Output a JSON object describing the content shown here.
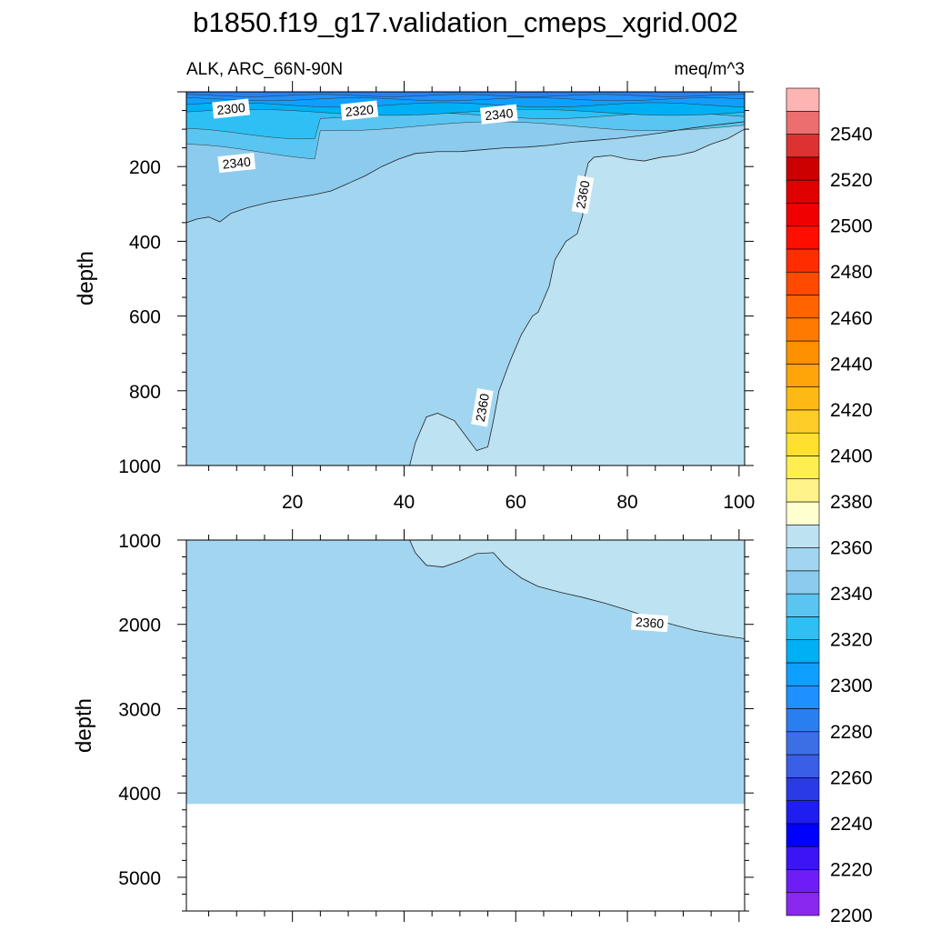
{
  "chart_data": {
    "type": "contour",
    "title": "b1850.f19_g17.validation_cmeps_xgrid.002",
    "subtitle_left": "ALK, ARC_66N-90N",
    "units": "meq/m^3",
    "ylabel": "depth",
    "xlim": [
      1,
      101
    ],
    "x_ticks": [
      "20",
      "40",
      "60",
      "80",
      "100"
    ],
    "x_tick_values": [
      20,
      40,
      60,
      80,
      100
    ],
    "top_panel": {
      "ylim": [
        0,
        1000
      ],
      "y_ticks": [
        "200",
        "400",
        "600",
        "800",
        "1000"
      ],
      "y_tick_values": [
        200,
        400,
        600,
        800,
        1000
      ],
      "contour_labels": [
        {
          "text": "2300",
          "x": 9,
          "depth": 45
        },
        {
          "text": "2320",
          "x": 32,
          "depth": 50
        },
        {
          "text": "2340",
          "x": 57,
          "depth": 60
        },
        {
          "text": "2340",
          "x": 10,
          "depth": 190
        },
        {
          "text": "2360",
          "x": 72,
          "depth": 275
        },
        {
          "text": "2360",
          "x": 54,
          "depth": 845
        }
      ],
      "contours": [
        {
          "level": 2340,
          "points": [
            [
              1,
              350
            ],
            [
              3,
              340
            ],
            [
              5,
              335
            ],
            [
              7,
              348
            ],
            [
              9,
              325
            ],
            [
              12,
              310
            ],
            [
              16,
              295
            ],
            [
              20,
              285
            ],
            [
              24,
              275
            ],
            [
              27,
              265
            ],
            [
              30,
              245
            ],
            [
              33,
              225
            ],
            [
              36,
              200
            ],
            [
              39,
              180
            ],
            [
              42,
              165
            ],
            [
              46,
              160
            ],
            [
              50,
              160
            ],
            [
              54,
              155
            ],
            [
              58,
              150
            ],
            [
              62,
              148
            ],
            [
              66,
              143
            ],
            [
              70,
              135
            ],
            [
              74,
              130
            ],
            [
              78,
              125
            ],
            [
              82,
              118
            ],
            [
              86,
              110
            ],
            [
              90,
              100
            ],
            [
              95,
              90
            ],
            [
              98,
              85
            ],
            [
              101,
              80
            ]
          ]
        },
        {
          "level": 2360,
          "points": [
            [
              41,
              1000
            ],
            [
              42,
              940
            ],
            [
              44,
              870
            ],
            [
              46,
              860
            ],
            [
              49,
              880
            ],
            [
              51,
              920
            ],
            [
              53,
              960
            ],
            [
              55,
              950
            ],
            [
              56,
              880
            ],
            [
              57,
              800
            ],
            [
              59,
              720
            ],
            [
              61,
              650
            ],
            [
              63,
              600
            ],
            [
              64,
              590
            ],
            [
              66,
              520
            ],
            [
              67,
              450
            ],
            [
              69,
              400
            ],
            [
              71,
              380
            ],
            [
              72,
              330
            ],
            [
              72,
              250
            ],
            [
              73,
              190
            ],
            [
              74,
              175
            ],
            [
              77,
              170
            ],
            [
              80,
              180
            ],
            [
              83,
              185
            ],
            [
              86,
              175
            ],
            [
              89,
              170
            ],
            [
              92,
              160
            ],
            [
              95,
              140
            ],
            [
              98,
              125
            ],
            [
              101,
              100
            ]
          ]
        }
      ]
    },
    "bottom_panel": {
      "ylim": [
        1000,
        5400
      ],
      "y_ticks": [
        "1000",
        "2000",
        "3000",
        "4000",
        "5000"
      ],
      "y_tick_values": [
        1000,
        2000,
        3000,
        4000,
        5000
      ],
      "ocean_floor_depth": 4130,
      "contour_labels": [
        {
          "text": "2360",
          "x": 84,
          "depth": 1980
        }
      ],
      "contours": [
        {
          "level": 2360,
          "points": [
            [
              41,
              1000
            ],
            [
              42,
              1150
            ],
            [
              44,
              1300
            ],
            [
              47,
              1320
            ],
            [
              50,
              1250
            ],
            [
              53,
              1160
            ],
            [
              56,
              1150
            ],
            [
              58,
              1300
            ],
            [
              61,
              1450
            ],
            [
              64,
              1550
            ],
            [
              68,
              1620
            ],
            [
              72,
              1680
            ],
            [
              76,
              1750
            ],
            [
              80,
              1830
            ],
            [
              84,
              1920
            ],
            [
              88,
              2000
            ],
            [
              92,
              2070
            ],
            [
              96,
              2120
            ],
            [
              101,
              2170
            ]
          ]
        }
      ]
    },
    "colorbar": {
      "levels": [
        2200,
        2210,
        2220,
        2230,
        2240,
        2250,
        2260,
        2270,
        2280,
        2290,
        2300,
        2310,
        2320,
        2330,
        2340,
        2350,
        2360,
        2370,
        2380,
        2390,
        2400,
        2410,
        2420,
        2430,
        2440,
        2450,
        2460,
        2470,
        2480,
        2490,
        2500,
        2510,
        2520,
        2530,
        2540,
        2550
      ],
      "labels": [
        "2200",
        "2220",
        "2240",
        "2260",
        "2280",
        "2300",
        "2320",
        "2340",
        "2360",
        "2380",
        "2400",
        "2420",
        "2440",
        "2460",
        "2480",
        "2500",
        "2520",
        "2540"
      ],
      "colors": [
        "#8a28f0",
        "#6e1ef5",
        "#3c14f5",
        "#0000ff",
        "#1e1ef0",
        "#2a3ae6",
        "#3a5ee6",
        "#3c6ee6",
        "#2a7ff0",
        "#1e90ff",
        "#0fa0ff",
        "#00b0f5",
        "#2ec0f5",
        "#5ac5f0",
        "#8ccbee",
        "#a2d6f0",
        "#bde2f2",
        "#ffffd0",
        "#fff38a",
        "#ffee50",
        "#ffe12d",
        "#ffcd28",
        "#ffb914",
        "#ffa50a",
        "#ff9000",
        "#ff7a00",
        "#ff6400",
        "#ff4a00",
        "#ff2d00",
        "#ff0f00",
        "#f00000",
        "#e00000",
        "#cc0000",
        "#dc3232",
        "#ec6e6e",
        "#ffb4b4"
      ]
    }
  }
}
